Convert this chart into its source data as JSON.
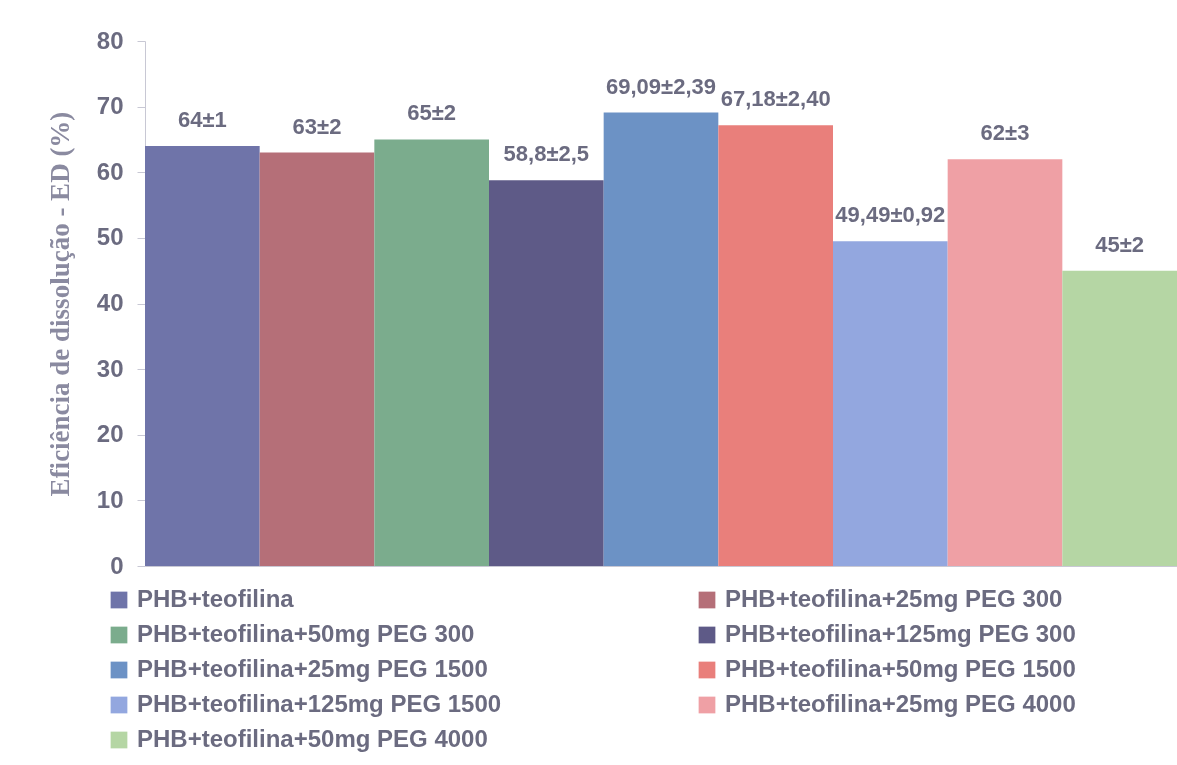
{
  "chart_data": {
    "type": "bar",
    "ylabel": "Eficiência de dissolução - ED (%)",
    "categories": [
      null
    ],
    "series": [
      {
        "name": "PHB+teofilina",
        "color": "#6f74a9",
        "values": [
          64
        ],
        "value_labels": [
          "64±1"
        ]
      },
      {
        "name": "PHB+teofilina+25mg PEG 300",
        "color": "#b56f78",
        "values": [
          63
        ],
        "value_labels": [
          "63±2"
        ]
      },
      {
        "name": "PHB+teofilina+50mg PEG 300",
        "color": "#7bac8d",
        "values": [
          65
        ],
        "value_labels": [
          "65±2"
        ]
      },
      {
        "name": "PHB+teofilina+125mg PEG 300",
        "color": "#5e5a87",
        "values": [
          58.8
        ],
        "value_labels": [
          "58,8±2,5"
        ]
      },
      {
        "name": "PHB+teofilina+25mg PEG 1500",
        "color": "#6c92c5",
        "values": [
          69.09
        ],
        "value_labels": [
          "69,09±2,39"
        ]
      },
      {
        "name": "PHB+teofilina+50mg PEG 1500",
        "color": "#e97f7b",
        "values": [
          67.18
        ],
        "value_labels": [
          "67,18±2,40"
        ]
      },
      {
        "name": "PHB+teofilina+125mg PEG 1500",
        "color": "#93a7df",
        "values": [
          49.49
        ],
        "value_labels": [
          "49,49±0,92"
        ]
      },
      {
        "name": "PHB+teofilina+25mg PEG 4000",
        "color": "#efa0a5",
        "values": [
          62
        ],
        "value_labels": [
          "62±3"
        ]
      },
      {
        "name": "PHB+teofilina+50mg PEG 4000",
        "color": "#b5d6a4",
        "values": [
          45
        ],
        "value_labels": [
          "45±2"
        ]
      }
    ],
    "ylim": [
      0,
      80
    ],
    "yticks": [
      0,
      10,
      20,
      30,
      40,
      50,
      60,
      70,
      80
    ],
    "grid": false,
    "legend": "bottom",
    "tick_labels": "y"
  }
}
